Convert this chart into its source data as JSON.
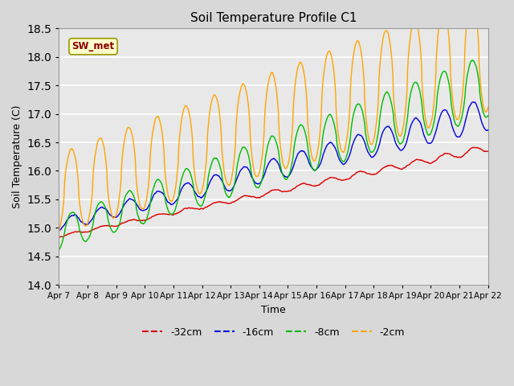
{
  "title": "Soil Temperature Profile C1",
  "xlabel": "Time",
  "ylabel": "Soil Temperature (C)",
  "ylim": [
    14.0,
    18.5
  ],
  "annotation_text": "SW_met",
  "annotation_color": "#8B0000",
  "annotation_bg": "#FFFFCC",
  "legend_labels": [
    "-32cm",
    "-16cm",
    "-8cm",
    "-2cm"
  ],
  "legend_colors": [
    "#DD0000",
    "#0000DD",
    "#00BB00",
    "#FFA500"
  ],
  "xtick_labels": [
    "Apr 7",
    "Apr 8",
    "Apr 9",
    "Apr 10",
    "Apr 11",
    "Apr 12",
    "Apr 13",
    "Apr 14",
    "Apr 15",
    "Apr 16",
    "Apr 17",
    "Apr 18",
    "Apr 19",
    "Apr 20",
    "Apr 21",
    "Apr 22"
  ],
  "fig_facecolor": "#D8D8D8",
  "ax_facecolor": "#E8E8E8",
  "grid_color": "#FFFFFF",
  "n_days": 15,
  "pts_per_day": 96,
  "seed": 42
}
